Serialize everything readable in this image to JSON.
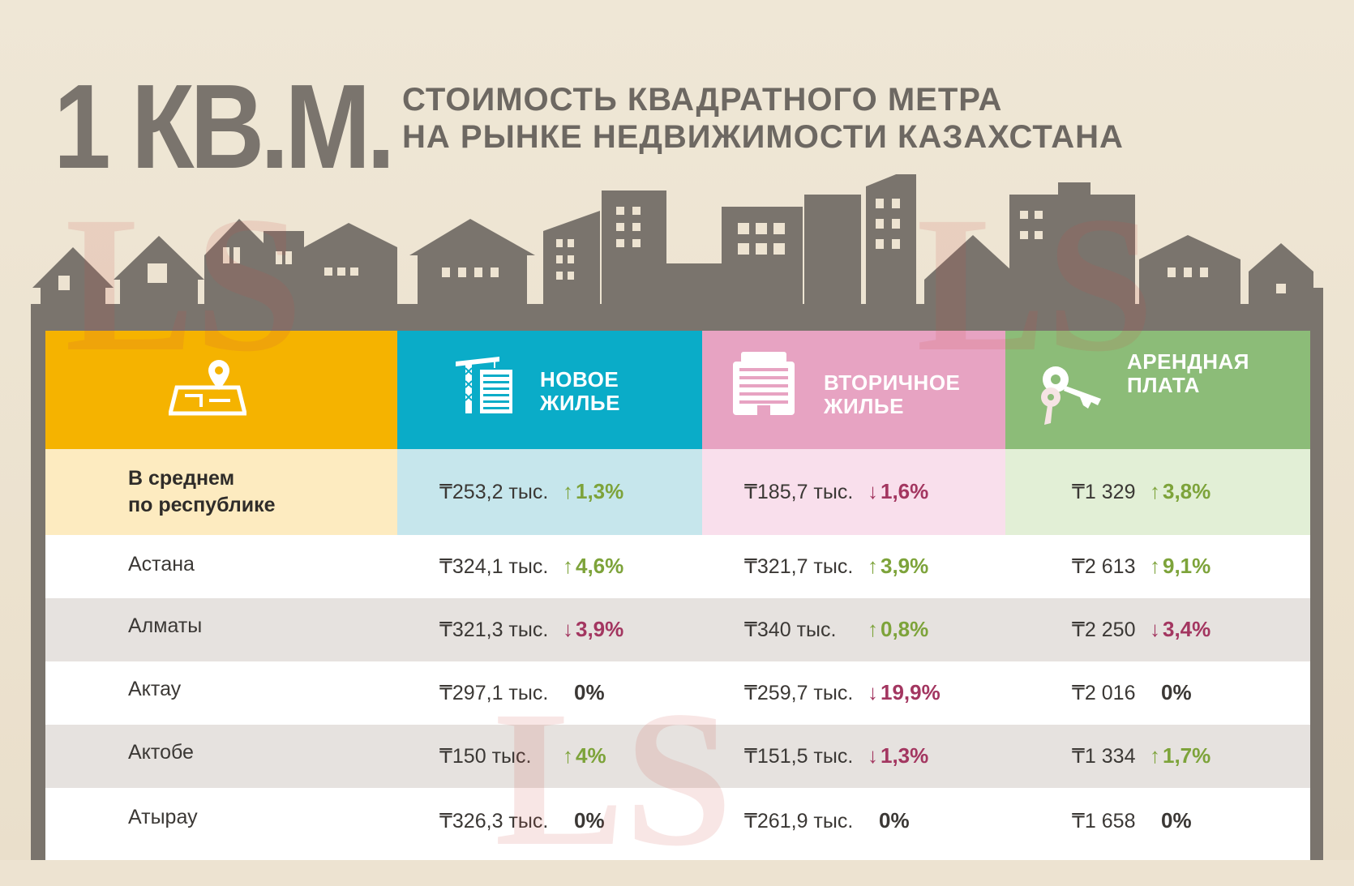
{
  "header": {
    "big_title": "1 КВ.М.",
    "subtitle_line1": "СТОИМОСТЬ КВАДРАТНОГО МЕТРА",
    "subtitle_line2": "НА РЫНКЕ НЕДВИЖИМОСТИ КАЗАХСТАНА"
  },
  "watermark": "LS",
  "columns": [
    {
      "icon": "map-pin-icon",
      "label_line1": "",
      "label_line2": "",
      "color": "#f5b300"
    },
    {
      "icon": "crane-building-icon",
      "label_line1": "НОВОЕ",
      "label_line2": "ЖИЛЬЕ",
      "color": "#0aacc8"
    },
    {
      "icon": "apartment-building-icon",
      "label_line1": "ВТОРИЧНОЕ",
      "label_line2": "ЖИЛЬЕ",
      "color": "#e7a3c2"
    },
    {
      "icon": "keys-icon",
      "label_line1": "АРЕНДНАЯ",
      "label_line2": "ПЛАТА",
      "color": "#8cbc78"
    }
  ],
  "rows": [
    {
      "region_line1": "В среднем",
      "region_line2": "по республике",
      "new_price": "₸253,2 тыс.",
      "new_arrow": "↑",
      "new_change": "1,3%",
      "new_dir": "up",
      "sec_price": "₸185,7 тыс.",
      "sec_arrow": "↓",
      "sec_change": "1,6%",
      "sec_dir": "down",
      "rent_price": "₸1 329",
      "rent_arrow": "↑",
      "rent_change": "3,8%",
      "rent_dir": "up"
    },
    {
      "region_line1": "Астана",
      "region_line2": "",
      "new_price": "₸324,1 тыс.",
      "new_arrow": "↑",
      "new_change": "4,6%",
      "new_dir": "up",
      "sec_price": "₸321,7 тыс.",
      "sec_arrow": "↑",
      "sec_change": "3,9%",
      "sec_dir": "up",
      "rent_price": "₸2 613",
      "rent_arrow": "↑",
      "rent_change": "9,1%",
      "rent_dir": "up"
    },
    {
      "region_line1": "Алматы",
      "region_line2": "",
      "new_price": "₸321,3 тыс.",
      "new_arrow": "↓",
      "new_change": "3,9%",
      "new_dir": "down",
      "sec_price": "₸340 тыс.",
      "sec_arrow": "↑",
      "sec_change": "0,8%",
      "sec_dir": "up",
      "rent_price": "₸2 250",
      "rent_arrow": "↓",
      "rent_change": "3,4%",
      "rent_dir": "down"
    },
    {
      "region_line1": "Актау",
      "region_line2": "",
      "new_price": "₸297,1 тыс.",
      "new_arrow": "",
      "new_change": "0%",
      "new_dir": "zero",
      "sec_price": "₸259,7 тыс.",
      "sec_arrow": "↓",
      "sec_change": "19,9%",
      "sec_dir": "down",
      "rent_price": "₸2 016",
      "rent_arrow": "",
      "rent_change": "0%",
      "rent_dir": "zero"
    },
    {
      "region_line1": "Актобе",
      "region_line2": "",
      "new_price": "₸150 тыс.",
      "new_arrow": "↑",
      "new_change": "4%",
      "new_dir": "up",
      "sec_price": "₸151,5 тыс.",
      "sec_arrow": "↓",
      "sec_change": "1,3%",
      "sec_dir": "down",
      "rent_price": "₸1 334",
      "rent_arrow": "↑",
      "rent_change": "1,7%",
      "rent_dir": "up"
    },
    {
      "region_line1": "Атырау",
      "region_line2": "",
      "new_price": "₸326,3 тыс.",
      "new_arrow": "",
      "new_change": "0%",
      "new_dir": "zero",
      "sec_price": "₸261,9 тыс.",
      "sec_arrow": "",
      "sec_change": "0%",
      "sec_dir": "zero",
      "rent_price": "₸1 658",
      "rent_arrow": "",
      "rent_change": "0%",
      "rent_dir": "zero"
    }
  ]
}
